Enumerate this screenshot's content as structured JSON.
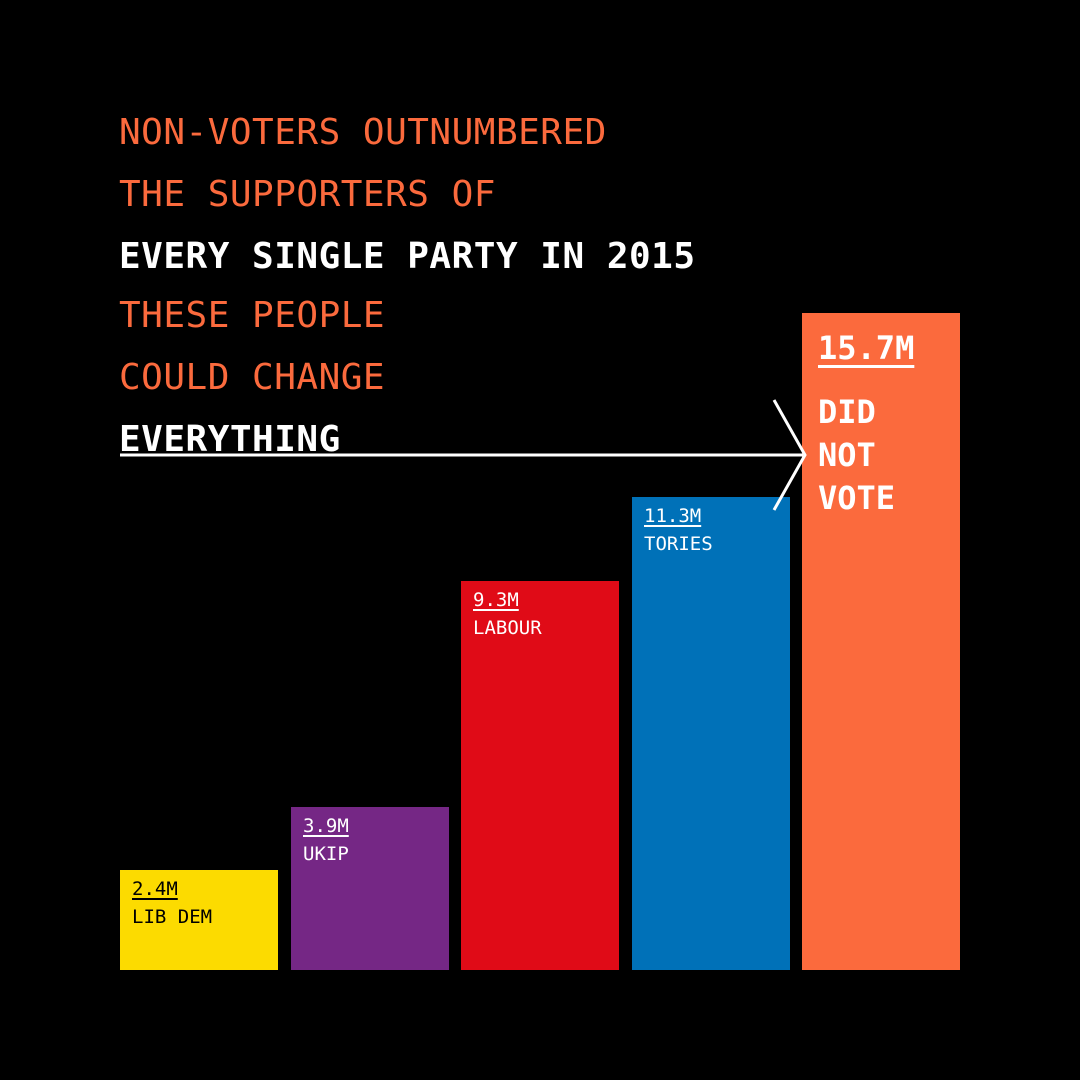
{
  "headline_1": {
    "line_1": "NON-VOTERS OUTNUMBERED",
    "line_2": "THE SUPPORTERS OF",
    "line_3": "EVERY SINGLE PARTY IN 2015"
  },
  "headline_2": {
    "line_1": "THESE PEOPLE",
    "line_2": "COULD CHANGE",
    "line_3": "EVERYTHING"
  },
  "colors": {
    "background": "#000000",
    "accent_orange": "#fb6a3d",
    "text_white": "#ffffff"
  },
  "chart_data": {
    "type": "bar",
    "title": "",
    "xlabel": "",
    "ylabel": "",
    "unit": "M",
    "categories": [
      "LIB DEM",
      "UKIP",
      "LABOUR",
      "TORIES",
      "DID NOT VOTE"
    ],
    "values": [
      2.4,
      3.9,
      9.3,
      11.3,
      15.7
    ],
    "value_labels": [
      "2.4M",
      "3.9M",
      "9.3M",
      "11.3M",
      "15.7M"
    ],
    "colors": [
      "#fcdb00",
      "#752785",
      "#e00b17",
      "#0071b8",
      "#fb6a3d"
    ],
    "label_colors": [
      "#000000",
      "#ffffff",
      "#ffffff",
      "#ffffff",
      "#ffffff"
    ],
    "ylim": [
      0,
      15.7
    ],
    "grid": false,
    "legend": "none"
  }
}
